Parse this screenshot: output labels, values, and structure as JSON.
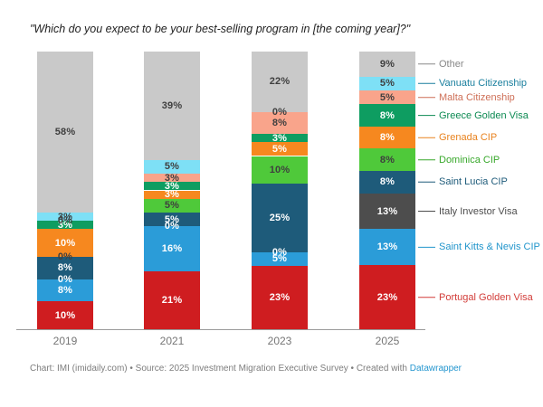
{
  "title": "\"Which do you expect to be your best-selling program in [the coming year]?\"",
  "footer": {
    "prefix": "Chart: IMI (imidaily.com) • Source: 2025 Investment Migration Executive Survey • Created with ",
    "link": "Datawrapper",
    "link_color": "#2496cf"
  },
  "chart_data": {
    "type": "bar",
    "stacked": true,
    "percent": true,
    "unit": "%",
    "ylim": [
      0,
      100
    ],
    "grid": false,
    "legend_position": "right",
    "categories": [
      "2019",
      "2021",
      "2023",
      "2025"
    ],
    "series": [
      {
        "name": "Portugal Golden Visa",
        "color": "#cf1d20",
        "label_style": "light",
        "legend_color": "#d23c38",
        "values": [
          10,
          21,
          23,
          23
        ]
      },
      {
        "name": "Saint Kitts & Nevis CIP",
        "color": "#2b9cd8",
        "label_style": "light",
        "legend_color": "#2396cc",
        "values": [
          8,
          16,
          5,
          13
        ]
      },
      {
        "name": "Italy Investor Visa",
        "color": "#4d4d4d",
        "label_style": "light",
        "legend_color": "#4d4d4d",
        "values": [
          0,
          0,
          0,
          13
        ]
      },
      {
        "name": "Saint Lucia CIP",
        "color": "#1e5b7a",
        "label_style": "light",
        "legend_color": "#1e5b7a",
        "values": [
          8,
          5,
          25,
          8
        ]
      },
      {
        "name": "Dominica CIP",
        "color": "#4fc93a",
        "label_style": "dark",
        "legend_color": "#38a82b",
        "values": [
          0,
          5,
          10,
          8
        ]
      },
      {
        "name": "Grenada CIP",
        "color": "#f6881f",
        "label_style": "light",
        "legend_color": "#e8821e",
        "values": [
          10,
          3,
          5,
          8
        ]
      },
      {
        "name": "Greece Golden Visa",
        "color": "#0e9d61",
        "label_style": "light",
        "legend_color": "#0c8a52",
        "values": [
          3,
          3,
          3,
          8
        ]
      },
      {
        "name": "Malta Citizenship",
        "color": "#f9a48b",
        "label_style": "dark",
        "legend_color": "#ce6f57",
        "values": [
          0,
          3,
          8,
          5
        ]
      },
      {
        "name": "Vanuatu Citizenship",
        "color": "#7ee0f6",
        "label_style": "dark",
        "legend_color": "#1a7f9e",
        "values": [
          3,
          5,
          0,
          5
        ]
      },
      {
        "name": "Other",
        "color": "#c9c9c9",
        "label_style": "dark",
        "legend_color": "#888888",
        "values": [
          58,
          39,
          22,
          9
        ]
      }
    ]
  }
}
